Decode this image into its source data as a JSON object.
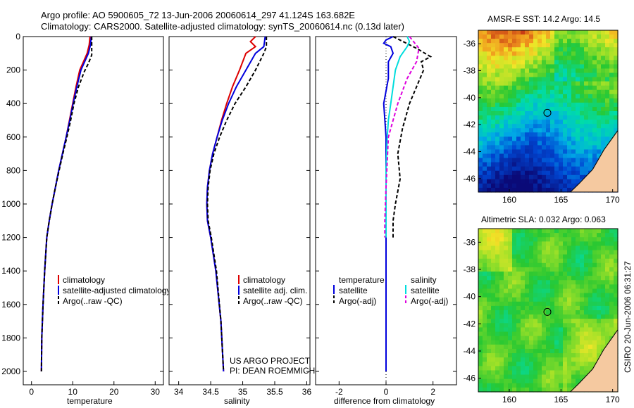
{
  "header": {
    "line1": "Argo profile: AO 5900605_72 13-Jun-2006 20060614_297 41.124S 163.682E",
    "line2": "Climatology: CARS2000. Satellite-adjusted climatology: synTS_20060614.nc (0.13d later)"
  },
  "side": {
    "sst_title": "AMSR-E SST: 14.2 Argo: 14.5",
    "sla_title": "Altimetric SLA: 0.032 Argo: 0.063",
    "stamp": "CSIRO 20-Jun-2006 06:31:27"
  },
  "project": {
    "line1": "US ARGO PROJECT",
    "line2": "PI: DEAN ROEMMICH"
  },
  "colors": {
    "climatology": "#dd0000",
    "satellite": "#0000dd",
    "argo": "#000000",
    "sat_sal": "#00dddd",
    "argo_sal": "#dd00dd"
  },
  "chart_data": [
    {
      "type": "line",
      "title": "",
      "xlabel": "temperature",
      "ylabel": "",
      "xlim": [
        -2,
        32
      ],
      "ylim": [
        2080,
        0
      ],
      "xticks": [
        "0",
        "10",
        "20",
        "30"
      ],
      "yticks": [
        "0",
        "200",
        "400",
        "600",
        "800",
        "1000",
        "1200",
        "1400",
        "1600",
        "1800",
        "2000"
      ],
      "legend": [
        "climatology",
        "satellite-adjusted climatology",
        "Argo(..raw -QC)"
      ],
      "series": [
        {
          "name": "climatology",
          "x": [
            14.2,
            14.0,
            13.5,
            12.6,
            11.7,
            10.8,
            10.0,
            9.2,
            8.4,
            7.5,
            6.6,
            5.8,
            5.0,
            4.3,
            3.7,
            3.2,
            2.8,
            2.5,
            2.4
          ],
          "y": [
            0,
            50,
            100,
            150,
            200,
            300,
            400,
            500,
            600,
            700,
            800,
            900,
            1000,
            1100,
            1200,
            1400,
            1600,
            1800,
            2000
          ]
        },
        {
          "name": "satellite-adjusted climatology",
          "x": [
            14.5,
            14.3,
            13.8,
            12.9,
            12.0,
            11.0,
            10.1,
            9.3,
            8.4,
            7.5,
            6.6,
            5.8,
            5.0,
            4.3,
            3.7,
            3.2,
            2.8,
            2.5,
            2.4
          ],
          "y": [
            0,
            50,
            100,
            150,
            200,
            300,
            400,
            500,
            600,
            700,
            800,
            900,
            1000,
            1100,
            1200,
            1400,
            1600,
            1800,
            2000
          ]
        },
        {
          "name": "Argo(..raw -QC)",
          "x": [
            14.6,
            14.6,
            14.6,
            13.8,
            12.8,
            11.4,
            10.3,
            9.5,
            8.6,
            7.6,
            6.7,
            5.8,
            5.0,
            4.3,
            3.7,
            3.2,
            2.8,
            2.5,
            2.4
          ],
          "y": [
            0,
            50,
            110,
            160,
            210,
            300,
            400,
            500,
            600,
            700,
            800,
            900,
            1000,
            1100,
            1200,
            1400,
            1600,
            1800,
            2000
          ]
        }
      ]
    },
    {
      "type": "line",
      "title": "",
      "xlabel": "salinity",
      "ylabel": "",
      "xlim": [
        33.85,
        36.05
      ],
      "ylim": [
        2080,
        0
      ],
      "xticks": [
        "34",
        "34.5",
        "35",
        "35.5",
        "36"
      ],
      "yticks": [],
      "legend": [
        "climatology",
        "satellite adj. clim.",
        "Argo(..raw -QC)"
      ],
      "series": [
        {
          "name": "climatology",
          "x": [
            35.2,
            35.12,
            35.2,
            35.05,
            34.95,
            34.84,
            34.75,
            34.67,
            34.6,
            34.53,
            34.48,
            34.45,
            34.44,
            34.45,
            34.5,
            34.58,
            34.66,
            34.7
          ],
          "y": [
            0,
            30,
            60,
            100,
            200,
            300,
            400,
            500,
            600,
            700,
            800,
            900,
            1000,
            1100,
            1200,
            1400,
            1700,
            2000
          ]
        },
        {
          "name": "satellite adj. clim.",
          "x": [
            35.35,
            35.34,
            35.33,
            35.2,
            35.05,
            34.9,
            34.78,
            34.68,
            34.6,
            34.53,
            34.48,
            34.45,
            34.44,
            34.45,
            34.5,
            34.58,
            34.66,
            34.7
          ],
          "y": [
            0,
            30,
            60,
            100,
            200,
            300,
            400,
            500,
            600,
            700,
            800,
            900,
            1000,
            1100,
            1200,
            1400,
            1700,
            2000
          ]
        },
        {
          "name": "Argo(..raw -QC)",
          "x": [
            35.37,
            35.37,
            35.37,
            35.33,
            35.2,
            35.05,
            34.88,
            34.75,
            34.64,
            34.55,
            34.49,
            34.46,
            34.45,
            34.46,
            34.51,
            34.59,
            34.66,
            34.7
          ],
          "y": [
            0,
            30,
            60,
            100,
            200,
            300,
            400,
            500,
            600,
            700,
            800,
            900,
            1000,
            1100,
            1200,
            1400,
            1700,
            2000
          ]
        }
      ]
    },
    {
      "type": "line",
      "title": "",
      "xlabel": "difference from climatology",
      "ylabel": "",
      "xlim": [
        -3,
        3
      ],
      "ylim": [
        2080,
        0
      ],
      "xticks": [
        "-2",
        "0",
        "2"
      ],
      "yticks": [],
      "legend": [
        "temperature",
        "satellite",
        "Argo(-adj)",
        "salinity",
        "satellite",
        "Argo(-adj)"
      ],
      "series": [
        {
          "name": "temperature satellite",
          "x": [
            0.3,
            0.0,
            -0.1,
            0.2,
            0.3,
            0.1,
            0.1,
            -0.1,
            0.0,
            0.0,
            0.0,
            0.0,
            0.0,
            0.0,
            0.0,
            0.0,
            0.0,
            0.0
          ],
          "y": [
            0,
            20,
            40,
            60,
            100,
            150,
            250,
            400,
            600,
            800,
            1000,
            1100,
            1200,
            1300,
            1400,
            1600,
            1800,
            2000
          ]
        },
        {
          "name": "temperature Argo(-adj)",
          "x": [
            0.3,
            1.3,
            1.9,
            1.5,
            1.6,
            1.3,
            1.0,
            0.7,
            0.5,
            0.6,
            0.4,
            0.3,
            0.3
          ],
          "y": [
            0,
            70,
            120,
            150,
            200,
            300,
            400,
            550,
            700,
            850,
            1000,
            1100,
            1200
          ]
        },
        {
          "name": "salinity satellite",
          "x": [
            0.9,
            1.0,
            0.9,
            0.6,
            0.4,
            0.3,
            0.2,
            0.1,
            0.05,
            0.0,
            0.0,
            0.0,
            0.0
          ],
          "y": [
            0,
            30,
            60,
            120,
            200,
            300,
            400,
            500,
            600,
            800,
            1000,
            1100,
            1200
          ]
        },
        {
          "name": "salinity Argo(-adj)",
          "x": [
            1.0,
            1.4,
            1.3,
            0.9,
            0.5,
            0.3,
            0.1,
            0.0,
            -0.05,
            -0.05
          ],
          "y": [
            0,
            70,
            150,
            250,
            400,
            500,
            600,
            900,
            1100,
            1200
          ]
        }
      ]
    },
    {
      "type": "heatmap",
      "title": "AMSR-E SST: 14.2 Argo: 14.5",
      "xlabel": "",
      "ylabel": "",
      "xlim": [
        157,
        170.5
      ],
      "ylim": [
        -47,
        -35
      ],
      "xticks": [
        "160",
        "165",
        "170"
      ],
      "yticks": [
        "-36",
        "-38",
        "-40",
        "-42",
        "-44",
        "-46"
      ],
      "marker": {
        "lon": 163.682,
        "lat": -41.124
      }
    },
    {
      "type": "heatmap",
      "title": "Altimetric SLA: 0.032 Argo: 0.063",
      "xlabel": "",
      "ylabel": "",
      "xlim": [
        157,
        170.5
      ],
      "ylim": [
        -47,
        -35
      ],
      "xticks": [
        "160",
        "165",
        "170"
      ],
      "yticks": [
        "-36",
        "-38",
        "-40",
        "-42",
        "-44",
        "-46"
      ],
      "marker": {
        "lon": 163.682,
        "lat": -41.124
      }
    }
  ]
}
